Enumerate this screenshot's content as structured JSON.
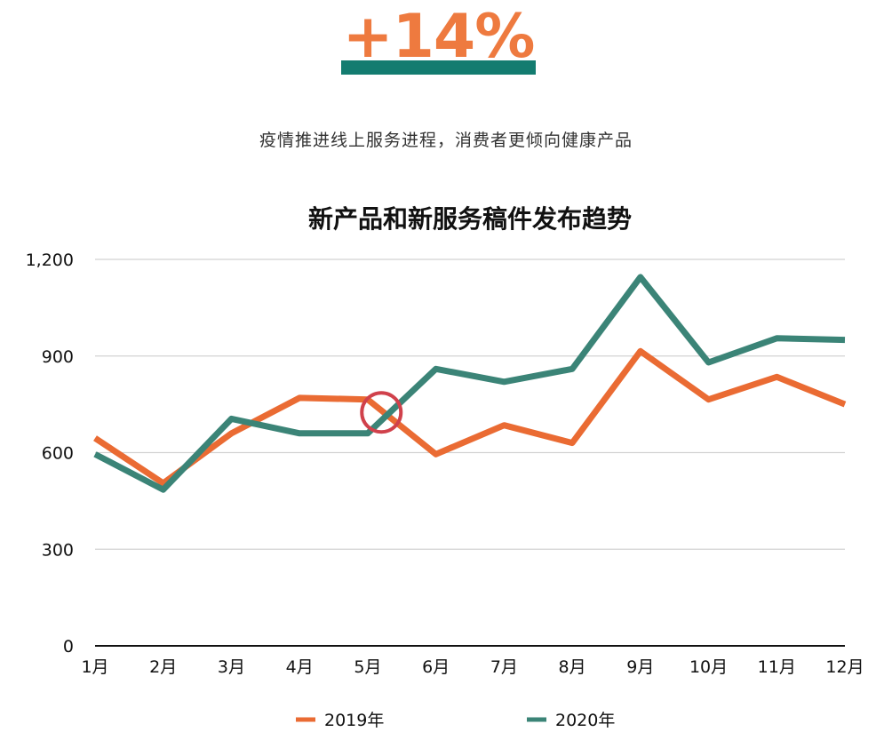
{
  "headline": {
    "value": "+14%",
    "color": "#ee7a3f",
    "bar_color": "#137c70"
  },
  "subtitle": "疫情推进线上服务进程，消费者更倾向健康产品",
  "chart_data": {
    "type": "line",
    "title": "新产品和新服务稿件发布趋势",
    "categories": [
      "1月",
      "2月",
      "3月",
      "4月",
      "5月",
      "6月",
      "7月",
      "8月",
      "9月",
      "10月",
      "11月",
      "12月"
    ],
    "series": [
      {
        "name": "2019年",
        "color": "#ea6b33",
        "values": [
          645,
          505,
          660,
          770,
          765,
          595,
          685,
          630,
          915,
          765,
          835,
          750
        ]
      },
      {
        "name": "2020年",
        "color": "#3b8477",
        "values": [
          595,
          485,
          705,
          660,
          660,
          860,
          820,
          860,
          1145,
          880,
          955,
          950
        ]
      }
    ],
    "ylim": [
      0,
      1200
    ],
    "yticks": [
      {
        "value": 0,
        "label": "0"
      },
      {
        "value": 300,
        "label": "300"
      },
      {
        "value": 600,
        "label": "600"
      },
      {
        "value": 900,
        "label": "900"
      },
      {
        "value": 1200,
        "label": "1,200"
      }
    ],
    "grid": true,
    "legend_position": "bottom",
    "annotation": {
      "type": "circle",
      "x_category_index": 4.2,
      "y_value": 725,
      "color": "#d0414b"
    },
    "colors": {
      "grid": "#d2d2d2",
      "axis": "#111111",
      "text": "#111111"
    }
  }
}
